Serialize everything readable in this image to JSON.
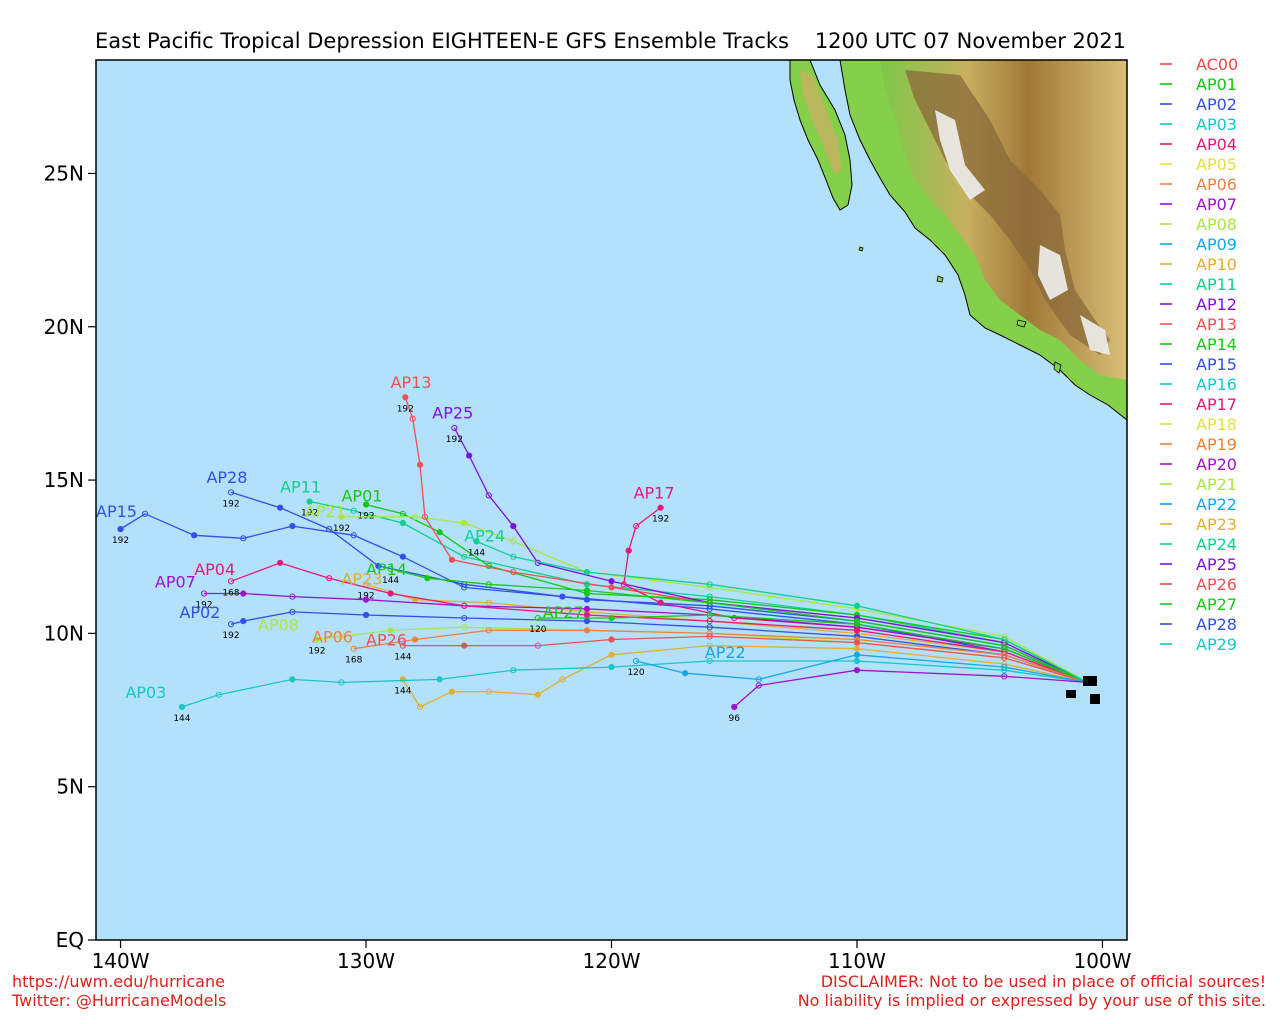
{
  "title_left": "East Pacific Tropical Depression EIGHTEEN-E GFS Ensemble Tracks",
  "title_right": "1200 UTC 07 November 2021",
  "lat_labels": [
    "EQ",
    "5N",
    "10N",
    "15N",
    "20N",
    "25N"
  ],
  "lat_values": [
    0,
    5,
    10,
    15,
    20,
    25
  ],
  "lon_labels": [
    "140W",
    "130W",
    "120W",
    "110W",
    "100W"
  ],
  "lon_values": [
    -140,
    -130,
    -120,
    -110,
    -100
  ],
  "map_extent": {
    "lon_min": -141,
    "lon_max": -99,
    "lat_min": 0,
    "lat_max": 28.7
  },
  "colors": {
    "ocean": "#b3e0fb",
    "footer": "#e0201c"
  },
  "footer": {
    "left_line1": "https://uwm.edu/hurricane",
    "left_line2": "Twitter: @HurricaneModels",
    "right_line1": "DISCLAIMER: Not to be used in place of official sources!",
    "right_line2": "No liability is implied or expressed by your use of this site."
  },
  "legend": [
    {
      "name": "AC00",
      "color": "#f04848"
    },
    {
      "name": "AP01",
      "color": "#10c810"
    },
    {
      "name": "AP02",
      "color": "#3050e8"
    },
    {
      "name": "AP03",
      "color": "#10c8c8"
    },
    {
      "name": "AP04",
      "color": "#e81878"
    },
    {
      "name": "AP05",
      "color": "#e0e040"
    },
    {
      "name": "AP06",
      "color": "#f08040"
    },
    {
      "name": "AP07",
      "color": "#a010d0"
    },
    {
      "name": "AP08",
      "color": "#a8e840"
    },
    {
      "name": "AP09",
      "color": "#10a8e8"
    },
    {
      "name": "AP10",
      "color": "#e0b030"
    },
    {
      "name": "AP11",
      "color": "#10d090"
    },
    {
      "name": "AP12",
      "color": "#8010e0"
    },
    {
      "name": "AP13",
      "color": "#f05050"
    },
    {
      "name": "AP14",
      "color": "#18c818"
    },
    {
      "name": "AP15",
      "color": "#3050e8"
    },
    {
      "name": "AP16",
      "color": "#18c8c8"
    },
    {
      "name": "AP17",
      "color": "#e81878"
    },
    {
      "name": "AP18",
      "color": "#e0e040"
    },
    {
      "name": "AP19",
      "color": "#f08030"
    },
    {
      "name": "AP20",
      "color": "#a010d0"
    },
    {
      "name": "AP21",
      "color": "#a8e840"
    },
    {
      "name": "AP22",
      "color": "#10a8e8"
    },
    {
      "name": "AP23",
      "color": "#e0b030"
    },
    {
      "name": "AP24",
      "color": "#10d090"
    },
    {
      "name": "AP25",
      "color": "#8010e0"
    },
    {
      "name": "AP26",
      "color": "#f05050"
    },
    {
      "name": "AP27",
      "color": "#18c818"
    },
    {
      "name": "AP28",
      "color": "#3050e8"
    },
    {
      "name": "AP29",
      "color": "#18c8c8"
    }
  ],
  "tracks": [
    {
      "name": "AP15",
      "color": "#3050e8",
      "end_hour": "192",
      "points": [
        [
          -100.6,
          8.4
        ],
        [
          -104,
          9.4
        ],
        [
          -110,
          10.3
        ],
        [
          -116,
          10.8
        ],
        [
          -122,
          11.2
        ],
        [
          -126,
          11.5
        ],
        [
          -128.5,
          12.5
        ],
        [
          -130.5,
          13.2
        ],
        [
          -133,
          13.5
        ],
        [
          -135,
          13.1
        ],
        [
          -137,
          13.2
        ],
        [
          -139,
          13.9
        ],
        [
          -140,
          13.4
        ]
      ]
    },
    {
      "name": "AP28",
      "color": "#3050e8",
      "end_hour": "192",
      "points": [
        [
          -100.6,
          8.4
        ],
        [
          -104,
          9.6
        ],
        [
          -110,
          10.4
        ],
        [
          -116,
          10.9
        ],
        [
          -121,
          11.1
        ],
        [
          -126,
          11.6
        ],
        [
          -129.5,
          12.2
        ],
        [
          -131.5,
          13.4
        ],
        [
          -133.5,
          14.1
        ],
        [
          -135.5,
          14.6
        ]
      ]
    },
    {
      "name": "AP11",
      "color": "#10d090",
      "end_hour": "192",
      "points": [
        [
          -100.6,
          8.4
        ],
        [
          -104,
          9.7
        ],
        [
          -110,
          10.6
        ],
        [
          -116,
          11.2
        ],
        [
          -121,
          11.6
        ],
        [
          -126,
          12.5
        ],
        [
          -128.5,
          13.6
        ],
        [
          -130.5,
          14
        ],
        [
          -132.3,
          14.3
        ]
      ]
    },
    {
      "name": "AP01",
      "color": "#10c810",
      "end_hour": "192",
      "points": [
        [
          -100.6,
          8.4
        ],
        [
          -104,
          9.8
        ],
        [
          -110,
          10.6
        ],
        [
          -116,
          11.1
        ],
        [
          -121,
          11.3
        ],
        [
          -125,
          12.2
        ],
        [
          -127,
          13.3
        ],
        [
          -128.5,
          13.9
        ],
        [
          -130,
          14.2
        ]
      ]
    },
    {
      "name": "AP21",
      "color": "#a8e840",
      "end_hour": "192",
      "points": [
        [
          -100.6,
          8.4
        ],
        [
          -104,
          9.9
        ],
        [
          -110,
          10.8
        ],
        [
          -116,
          11.5
        ],
        [
          -121,
          12
        ],
        [
          -124,
          13
        ],
        [
          -126,
          13.6
        ],
        [
          -128,
          13.8
        ],
        [
          -131,
          13.8
        ]
      ]
    },
    {
      "name": "AP13",
      "color": "#f05050",
      "end_hour": "192",
      "points": [
        [
          -100.6,
          8.4
        ],
        [
          -104,
          9.7
        ],
        [
          -110,
          10.5
        ],
        [
          -116,
          11
        ],
        [
          -120,
          11.5
        ],
        [
          -124,
          12
        ],
        [
          -126.5,
          12.4
        ],
        [
          -127.6,
          13.8
        ],
        [
          -127.8,
          15.5
        ],
        [
          -128.1,
          17
        ],
        [
          -128.4,
          17.7
        ]
      ]
    },
    {
      "name": "AP25",
      "color": "#8010e0",
      "end_hour": "192",
      "points": [
        [
          -100.6,
          8.4
        ],
        [
          -104,
          9.7
        ],
        [
          -110,
          10.5
        ],
        [
          -116,
          11
        ],
        [
          -120,
          11.7
        ],
        [
          -123,
          12.3
        ],
        [
          -124,
          13.5
        ],
        [
          -125,
          14.5
        ],
        [
          -125.8,
          15.8
        ],
        [
          -126.4,
          16.7
        ]
      ]
    },
    {
      "name": "AP17",
      "color": "#e81878",
      "end_hour": "192",
      "points": [
        [
          -100.6,
          8.4
        ],
        [
          -104,
          9.5
        ],
        [
          -110,
          10.2
        ],
        [
          -115,
          10.5
        ],
        [
          -118,
          11
        ],
        [
          -119.5,
          11.6
        ],
        [
          -119.3,
          12.7
        ],
        [
          -119,
          13.5
        ],
        [
          -118,
          14.1
        ]
      ]
    },
    {
      "name": "AP14",
      "color": "#18c818",
      "end_hour": "144",
      "points": [
        [
          -100.6,
          8.4
        ],
        [
          -104,
          9.6
        ],
        [
          -110,
          10.4
        ],
        [
          -116,
          11
        ],
        [
          -121,
          11.4
        ],
        [
          -125,
          11.6
        ],
        [
          -127.5,
          11.8
        ],
        [
          -129,
          12.1
        ]
      ]
    },
    {
      "name": "AP23",
      "color": "#e0b030",
      "end_hour": "192",
      "points": [
        [
          -100.6,
          8.4
        ],
        [
          -104,
          9.4
        ],
        [
          -110,
          10
        ],
        [
          -116,
          10.4
        ],
        [
          -121,
          10.7
        ],
        [
          -125,
          11
        ],
        [
          -128,
          11.1
        ],
        [
          -130,
          11.6
        ]
      ]
    },
    {
      "name": "AP07",
      "color": "#a010d0",
      "end_hour": "192",
      "points": [
        [
          -100.6,
          8.4
        ],
        [
          -104,
          9.5
        ],
        [
          -110,
          10.2
        ],
        [
          -116,
          10.6
        ],
        [
          -121,
          10.8
        ],
        [
          -126,
          10.9
        ],
        [
          -130,
          11.1
        ],
        [
          -133,
          11.2
        ],
        [
          -135,
          11.3
        ],
        [
          -136.6,
          11.3
        ]
      ]
    },
    {
      "name": "AP04",
      "color": "#e81878",
      "end_hour": "168",
      "points": [
        [
          -100.6,
          8.4
        ],
        [
          -104,
          9.4
        ],
        [
          -110,
          10.1
        ],
        [
          -116,
          10.4
        ],
        [
          -121,
          10.6
        ],
        [
          -126,
          10.9
        ],
        [
          -129,
          11.3
        ],
        [
          -131.5,
          11.8
        ],
        [
          -133.5,
          12.3
        ],
        [
          -135.5,
          11.7
        ]
      ]
    },
    {
      "name": "AP02",
      "color": "#3050e8",
      "end_hour": "192",
      "points": [
        [
          -100.6,
          8.4
        ],
        [
          -104,
          9.3
        ],
        [
          -110,
          9.9
        ],
        [
          -116,
          10.2
        ],
        [
          -121,
          10.4
        ],
        [
          -126,
          10.5
        ],
        [
          -130,
          10.6
        ],
        [
          -133,
          10.7
        ],
        [
          -135,
          10.4
        ],
        [
          -135.5,
          10.3
        ]
      ]
    },
    {
      "name": "AP08",
      "color": "#a8e840",
      "end_hour": "192",
      "points": [
        [
          -100.6,
          8.4
        ],
        [
          -104,
          9.2
        ],
        [
          -110,
          9.7
        ],
        [
          -116,
          10
        ],
        [
          -121,
          10.1
        ],
        [
          -126,
          10.2
        ],
        [
          -129,
          10.1
        ],
        [
          -131,
          9.9
        ],
        [
          -132,
          9.8
        ]
      ]
    },
    {
      "name": "AP06",
      "color": "#f08040",
      "end_hour": "168",
      "points": [
        [
          -100.6,
          8.4
        ],
        [
          -104,
          9.3
        ],
        [
          -110,
          9.8
        ],
        [
          -116,
          10
        ],
        [
          -121,
          10.1
        ],
        [
          -125,
          10.1
        ],
        [
          -128,
          9.8
        ],
        [
          -130.5,
          9.5
        ]
      ]
    },
    {
      "name": "AP26",
      "color": "#f05050",
      "end_hour": "144",
      "points": [
        [
          -100.6,
          8.4
        ],
        [
          -104,
          9.2
        ],
        [
          -110,
          9.7
        ],
        [
          -116,
          9.9
        ],
        [
          -120,
          9.8
        ],
        [
          -123,
          9.6
        ],
        [
          -126,
          9.6
        ],
        [
          -128.5,
          9.6
        ]
      ]
    },
    {
      "name": "AP10",
      "color": "#e0b030",
      "end_hour": "144",
      "points": [
        [
          -100.6,
          8.4
        ],
        [
          -104,
          9
        ],
        [
          -110,
          9.5
        ],
        [
          -116,
          9.6
        ],
        [
          -120,
          9.3
        ],
        [
          -122,
          8.5
        ],
        [
          -123,
          8
        ],
        [
          -125,
          8.1
        ],
        [
          -126.5,
          8.1
        ],
        [
          -127.8,
          7.6
        ],
        [
          -128.5,
          8.5
        ]
      ]
    },
    {
      "name": "AP03",
      "color": "#18c8c8",
      "end_hour": "144",
      "points": [
        [
          -100.6,
          8.4
        ],
        [
          -104,
          8.8
        ],
        [
          -110,
          9.1
        ],
        [
          -116,
          9.1
        ],
        [
          -120,
          8.9
        ],
        [
          -124,
          8.8
        ],
        [
          -127,
          8.5
        ],
        [
          -131,
          8.4
        ],
        [
          -133,
          8.5
        ],
        [
          -136,
          8
        ],
        [
          -137.5,
          7.6
        ]
      ]
    },
    {
      "name": "AP22",
      "color": "#10a8e8",
      "end_hour": "120",
      "points": [
        [
          -100.6,
          8.4
        ],
        [
          -104,
          8.9
        ],
        [
          -110,
          9.3
        ],
        [
          -114,
          8.5
        ],
        [
          -117,
          8.7
        ],
        [
          -119,
          9.1
        ]
      ]
    },
    {
      "name": "AP27",
      "color": "#18c818",
      "end_hour": "120",
      "points": [
        [
          -100.6,
          8.4
        ],
        [
          -104,
          9.5
        ],
        [
          -110,
          10.3
        ],
        [
          -116,
          10.6
        ],
        [
          -120,
          10.5
        ],
        [
          -123,
          10.5
        ]
      ]
    },
    {
      "name": "AP20",
      "color": "#a010d0",
      "end_hour": "96",
      "points": [
        [
          -100.6,
          8.4
        ],
        [
          -104,
          8.6
        ],
        [
          -110,
          8.8
        ],
        [
          -114,
          8.3
        ],
        [
          -115,
          7.6
        ]
      ]
    },
    {
      "name": "AP24",
      "color": "#10d090",
      "end_hour": "144",
      "points": [
        [
          -100.6,
          8.4
        ],
        [
          -104,
          9.8
        ],
        [
          -110,
          10.9
        ],
        [
          -116,
          11.6
        ],
        [
          -121,
          12
        ],
        [
          -124,
          12.5
        ],
        [
          -125.5,
          13
        ]
      ]
    }
  ],
  "track_labels": [
    {
      "text": "AP15",
      "lon": -141,
      "lat": 13.8,
      "color": "#3050e8"
    },
    {
      "text": "AP28",
      "lon": -136.5,
      "lat": 14.9,
      "color": "#3050e8"
    },
    {
      "text": "AP11",
      "lon": -133.5,
      "lat": 14.6,
      "color": "#10d090"
    },
    {
      "text": "AP01",
      "lon": -131,
      "lat": 14.3,
      "color": "#10c810"
    },
    {
      "text": "AP21",
      "lon": -132.5,
      "lat": 13.8,
      "color": "#a8e840"
    },
    {
      "text": "AP13",
      "lon": -129,
      "lat": 18,
      "color": "#f05050"
    },
    {
      "text": "AP25",
      "lon": -127.3,
      "lat": 17,
      "color": "#8010e0"
    },
    {
      "text": "AP17",
      "lon": -119.1,
      "lat": 14.4,
      "color": "#e81878"
    },
    {
      "text": "AP14",
      "lon": -130,
      "lat": 11.9,
      "color": "#18c818"
    },
    {
      "text": "AP23",
      "lon": -131,
      "lat": 11.6,
      "color": "#e0b030"
    },
    {
      "text": "AP07",
      "lon": -138.6,
      "lat": 11.5,
      "color": "#a010d0"
    },
    {
      "text": "AP04",
      "lon": -137,
      "lat": 11.9,
      "color": "#e81878"
    },
    {
      "text": "AP02",
      "lon": -137.6,
      "lat": 10.5,
      "color": "#3050e8"
    },
    {
      "text": "AP08",
      "lon": -134.4,
      "lat": 10.1,
      "color": "#a8e840"
    },
    {
      "text": "AP06",
      "lon": -132.2,
      "lat": 9.7,
      "color": "#f08040"
    },
    {
      "text": "AP26",
      "lon": -130,
      "lat": 9.6,
      "color": "#f05050"
    },
    {
      "text": "AP03",
      "lon": -139.8,
      "lat": 7.9,
      "color": "#18c8c8"
    },
    {
      "text": "AP22",
      "lon": -116.2,
      "lat": 9.2,
      "color": "#10a8e8"
    },
    {
      "text": "AP27",
      "lon": -122.8,
      "lat": 10.5,
      "color": "#18c818"
    },
    {
      "text": "AP24",
      "lon": -126,
      "lat": 13,
      "color": "#10d090"
    }
  ]
}
